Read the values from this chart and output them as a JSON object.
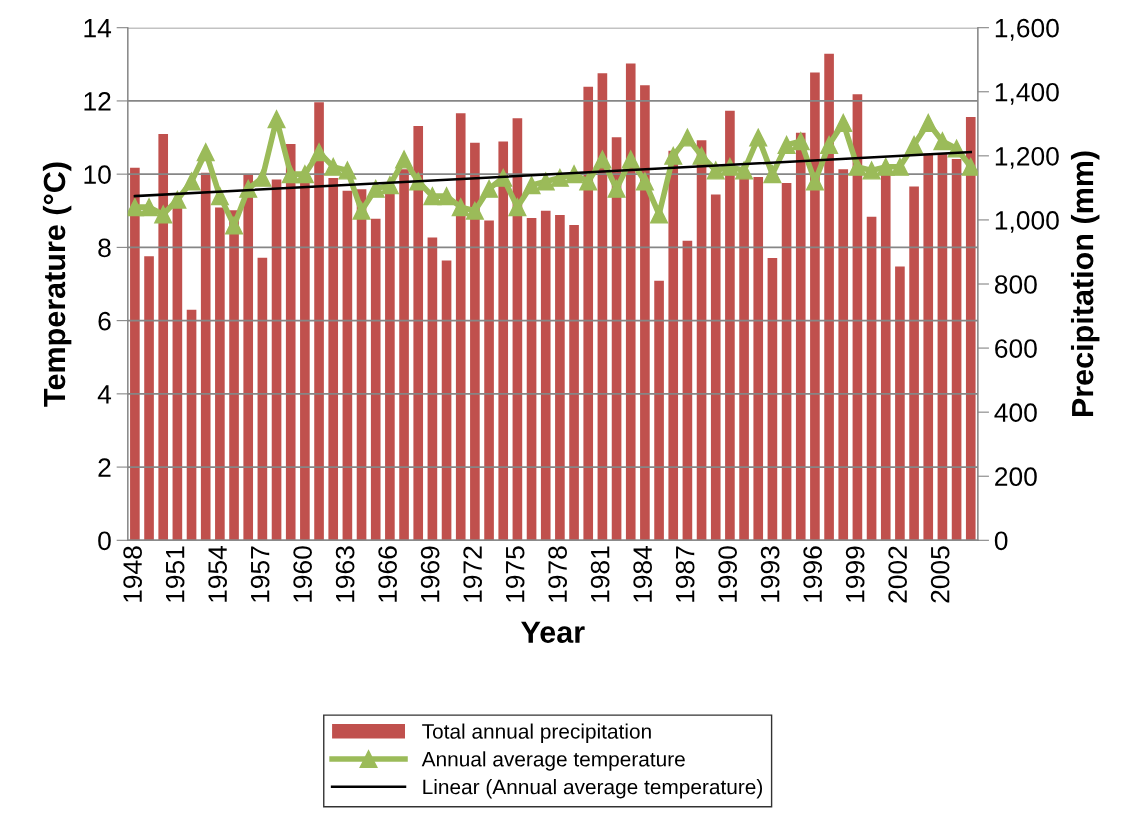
{
  "chart_data": {
    "type": "bar",
    "xlabel": "Year",
    "ylabel": "Temperature (°C)",
    "y2label": "Precipitation (mm)",
    "categories": [
      "1948",
      null,
      null,
      "1951",
      null,
      null,
      "1954",
      null,
      null,
      "1957",
      null,
      null,
      "1960",
      null,
      null,
      "1963",
      null,
      null,
      "1966",
      null,
      null,
      "1969",
      null,
      null,
      "1972",
      null,
      null,
      "1975",
      null,
      null,
      "1978",
      null,
      null,
      "1981",
      null,
      null,
      "1984",
      null,
      null,
      "1987",
      null,
      null,
      "1990",
      null,
      null,
      "1993",
      null,
      null,
      "1996",
      null,
      null,
      "1999",
      null,
      null,
      "2002",
      null,
      null,
      "2005",
      null,
      null
    ],
    "series": [
      {
        "name": "Total annual precipitation",
        "axis": "y2",
        "color": "#c0504d",
        "values": [
          1163,
          887,
          1268,
          1039,
          720,
          1147,
          1039,
          1030,
          1142,
          882,
          1126,
          1237,
          1120,
          1367,
          1131,
          1091,
          1096,
          1004,
          1093,
          1158,
          1293,
          945,
          873,
          1333,
          1241,
          998,
          1245,
          1317,
          1006,
          1029,
          1015,
          984,
          1416,
          1458,
          1258,
          1488,
          1420,
          810,
          1216,
          935,
          1249,
          1079,
          1341,
          1136,
          1134,
          881,
          1115,
          1272,
          1460,
          1519,
          1158,
          1392,
          1010,
          1147,
          855,
          1104,
          1207,
          1207,
          1190,
          1321
        ]
      },
      {
        "name": "Annual average temperature",
        "type": "line",
        "color": "#9bbb59",
        "marker": "triangle",
        "values": [
          9.1,
          9.1,
          8.9,
          9.3,
          9.8,
          10.6,
          9.4,
          8.6,
          9.6,
          9.9,
          11.5,
          10.0,
          10.0,
          10.6,
          10.2,
          10.1,
          9.0,
          9.6,
          9.7,
          10.4,
          9.8,
          9.4,
          9.4,
          9.1,
          9.0,
          9.6,
          9.9,
          9.1,
          9.7,
          9.8,
          9.9,
          10.0,
          9.8,
          10.4,
          9.6,
          10.4,
          9.8,
          8.9,
          10.5,
          11.0,
          10.5,
          10.1,
          10.2,
          10.1,
          11.0,
          10.0,
          10.8,
          10.9,
          9.8,
          10.8,
          11.4,
          10.2,
          10.1,
          10.2,
          10.2,
          10.8,
          11.4,
          10.9,
          10.7,
          10.2
        ]
      },
      {
        "name": "Linear (Annual average temperature)",
        "type": "line",
        "color": "#000000",
        "marker": "none",
        "values": [
          9.4,
          null,
          null,
          null,
          null,
          null,
          null,
          null,
          null,
          null,
          null,
          null,
          null,
          null,
          null,
          null,
          null,
          null,
          null,
          null,
          null,
          null,
          null,
          null,
          null,
          null,
          null,
          null,
          null,
          null,
          null,
          null,
          null,
          null,
          null,
          null,
          null,
          null,
          null,
          null,
          null,
          null,
          null,
          null,
          null,
          null,
          null,
          null,
          null,
          null,
          null,
          null,
          null,
          null,
          null,
          null,
          null,
          null,
          null,
          10.6
        ]
      }
    ],
    "ylim": [
      0,
      14
    ],
    "yticks": [
      0,
      2,
      4,
      6,
      8,
      10,
      12,
      14
    ],
    "y2lim": [
      0,
      1600
    ],
    "y2ticks": [
      0,
      200,
      400,
      600,
      800,
      {
        "value": 1000,
        "label": "1,000"
      },
      {
        "value": 1200,
        "label": "1,200"
      },
      {
        "value": 1400,
        "label": "1,400"
      },
      {
        "value": 1600,
        "label": "1,600"
      }
    ],
    "grid": "y",
    "legend": "bottom"
  }
}
